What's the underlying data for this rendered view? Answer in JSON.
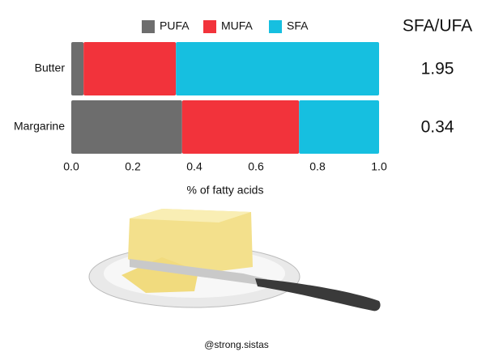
{
  "chart_data": {
    "type": "stacked-bar-horizontal",
    "categories": [
      "Butter",
      "Margarine"
    ],
    "series": [
      {
        "name": "PUFA",
        "color": "#6d6d6d",
        "values": [
          0.04,
          0.36
        ]
      },
      {
        "name": "MUFA",
        "color": "#f2333b",
        "values": [
          0.3,
          0.38
        ]
      },
      {
        "name": "SFA",
        "color": "#16bfe0",
        "values": [
          0.66,
          0.26
        ]
      }
    ],
    "xlim": [
      0,
      1
    ],
    "xticks": [
      {
        "value": 0,
        "label": "0.0"
      },
      0.2,
      0.4,
      0.6,
      0.8,
      {
        "value": 1,
        "label": "1.0"
      }
    ],
    "xlabel": "% of fatty acids",
    "ratio_title": "SFA/UFA",
    "ratios": [
      1.95,
      0.34
    ],
    "credit": "@strong.sistas"
  }
}
